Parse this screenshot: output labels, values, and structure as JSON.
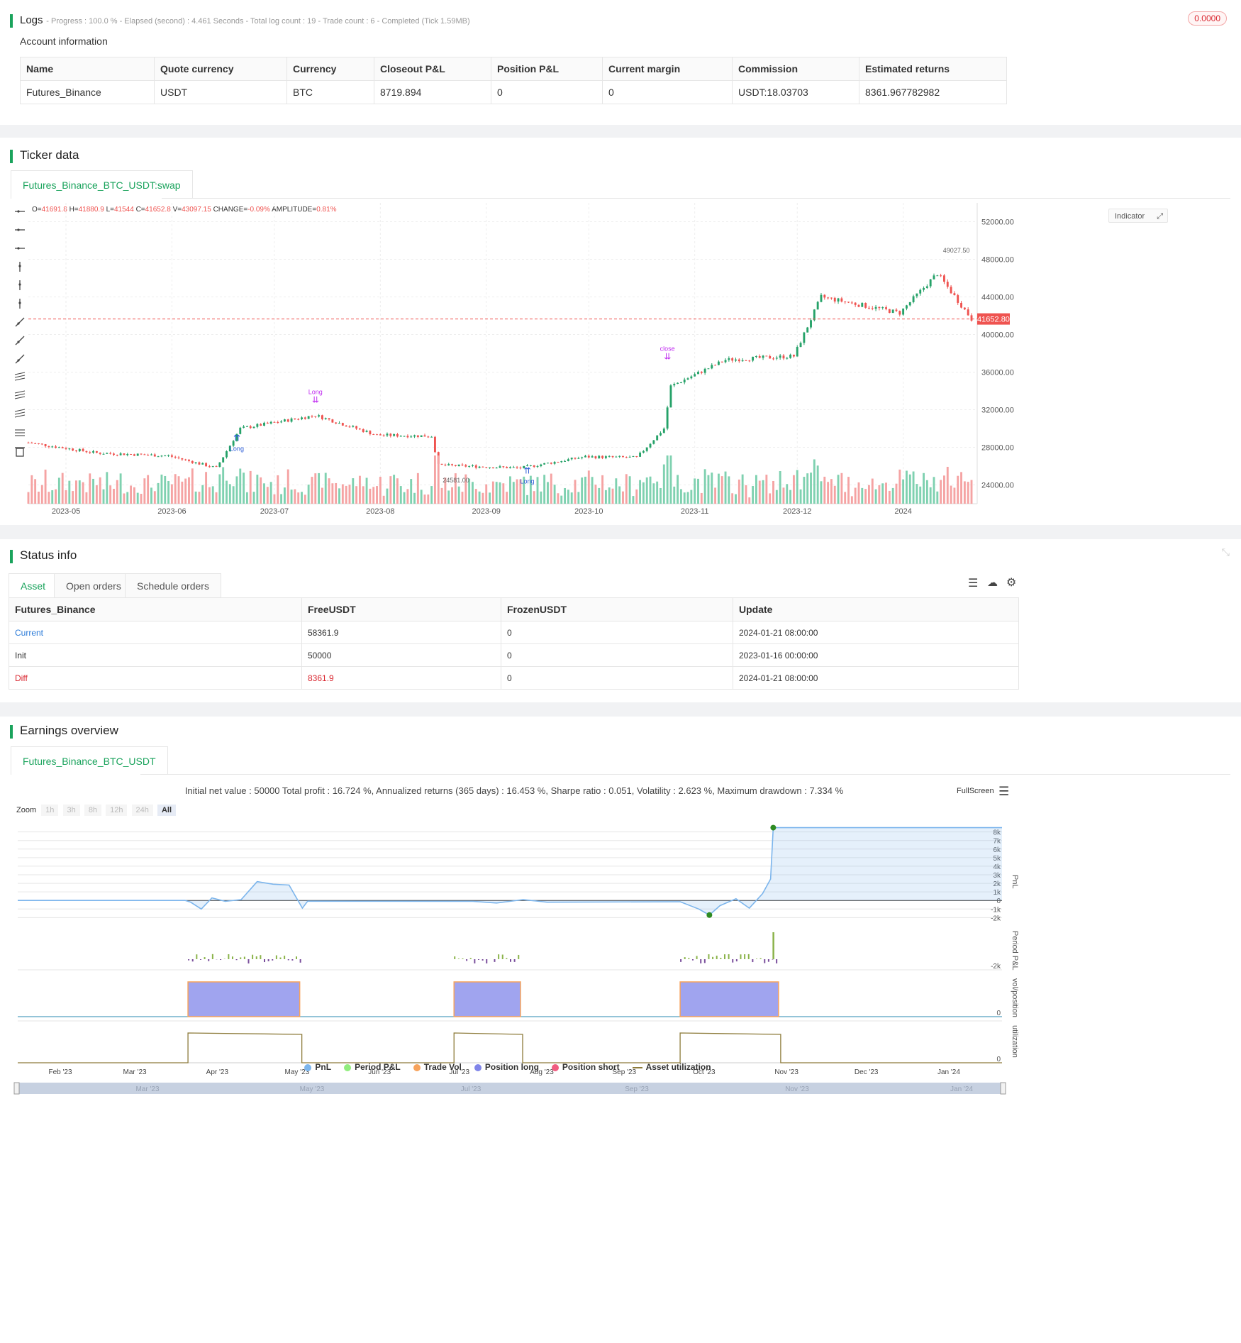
{
  "logs": {
    "title": "Logs",
    "status_line": "- Progress : 100.0 % - Elapsed (second) : 4.461  Seconds - Total log count : 19 - Trade count : 6 - Completed (Tick 1.59MB)",
    "badge": "0.0000",
    "account_title": "Account information",
    "columns": [
      "Name",
      "Quote currency",
      "Currency",
      "Closeout P&L",
      "Position P&L",
      "Current margin",
      "Commission",
      "Estimated returns"
    ],
    "row": [
      "Futures_Binance",
      "USDT",
      "BTC",
      "8719.894",
      "0",
      "0",
      "USDT:18.03703",
      "8361.967782982"
    ]
  },
  "ticker": {
    "title": "Ticker data",
    "tab": "Futures_Binance_BTC_USDT:swap",
    "ohlc": {
      "o_label": "O=",
      "o": "41691.8",
      "h_label": "H=",
      "h": "41880.9",
      "l_label": "L=",
      "l": "41544",
      "c_label": "C=",
      "c": "41652.8",
      "v_label": "V=",
      "v": "43097.15",
      "change_label": "CHANGE=",
      "change": "-0.09%",
      "amp_label": "AMPLITUDE=",
      "amp": "0.81%"
    },
    "indicator_btn": "Indicator",
    "last_price": "41652.80",
    "high_label": "49027.50",
    "low_label": "24581.00",
    "colors": {
      "up": "#26a269",
      "down": "#ef5350",
      "up_vol": "#7fd1b0",
      "down_vol": "#f5a3a3",
      "signal": "#c02cf0",
      "long": "#2a5bd7"
    },
    "annotations": {
      "close": "close",
      "long": "Long",
      "long1": "long",
      "long_count": "1"
    },
    "chart_data": {
      "type": "candlestick",
      "y_ticks": [
        "52000.00",
        "48000.00",
        "44000.00",
        "40000.00",
        "36000.00",
        "32000.00",
        "28000.00",
        "24000.00"
      ],
      "x_ticks": [
        "2023-05",
        "2023-06",
        "2023-07",
        "2023-08",
        "2023-09",
        "2023-10",
        "2023-11",
        "2023-12",
        "2024"
      ],
      "ylim": [
        22000,
        54000
      ],
      "close_anchors": [
        {
          "date": "2023-04-20",
          "close": 28500
        },
        {
          "date": "2023-05-10",
          "close": 27400
        },
        {
          "date": "2023-05-31",
          "close": 27100
        },
        {
          "date": "2023-06-14",
          "close": 25800
        },
        {
          "date": "2023-06-21",
          "close": 30000
        },
        {
          "date": "2023-07-13",
          "close": 31400
        },
        {
          "date": "2023-07-31",
          "close": 29300
        },
        {
          "date": "2023-08-16",
          "close": 29200
        },
        {
          "date": "2023-08-18",
          "close": 26100
        },
        {
          "date": "2023-09-11",
          "close": 25800
        },
        {
          "date": "2023-09-30",
          "close": 27000
        },
        {
          "date": "2023-10-15",
          "close": 26900
        },
        {
          "date": "2023-10-23",
          "close": 30000
        },
        {
          "date": "2023-10-25",
          "close": 34500
        },
        {
          "date": "2023-11-10",
          "close": 37300
        },
        {
          "date": "2023-11-30",
          "close": 37700
        },
        {
          "date": "2023-12-08",
          "close": 44000
        },
        {
          "date": "2023-12-31",
          "close": 42300
        },
        {
          "date": "2024-01-11",
          "close": 46500
        },
        {
          "date": "2024-01-21",
          "close": 41652.8
        }
      ]
    },
    "toolbar_icons": [
      "horizontal-ray-icon",
      "horizontal-line-icon",
      "horizontal-segment-icon",
      "vertical-ray-icon",
      "vertical-line-icon",
      "vertical-segment-icon",
      "trend-ray-icon",
      "trend-line-icon",
      "trend-segment-icon",
      "price-label-icon",
      "parallel-channel-icon",
      "fib-channel-icon",
      "fib-levels-icon",
      "delete-icon"
    ]
  },
  "status": {
    "title": "Status info",
    "tabs": [
      "Asset",
      "Open orders",
      "Schedule orders"
    ],
    "columns": [
      "Futures_Binance",
      "FreeUSDT",
      "FrozenUSDT",
      "Update"
    ],
    "rows": [
      {
        "name": "Current",
        "free": "58361.9",
        "frozen": "0",
        "update": "2024-01-21 08:00:00",
        "color": "#2a7ad8"
      },
      {
        "name": "Init",
        "free": "50000",
        "frozen": "0",
        "update": "2023-01-16 00:00:00",
        "color": "#333333"
      },
      {
        "name": "Diff",
        "free": "8361.9",
        "frozen": "0",
        "update": "2024-01-21 08:00:00",
        "color": "#d9252e"
      }
    ]
  },
  "earnings": {
    "title": "Earnings overview",
    "tab": "Futures_Binance_BTC_USDT",
    "summary": "Initial net value : 50000  Total profit : 16.724 %, Annualized returns (365 days) : 16.453 %, Sharpe ratio : 0.051, Volatility : 2.623 %, Maximum drawdown : 7.334 %",
    "fullscreen": "FullScreen",
    "zoom_label": "Zoom",
    "zoom_options": [
      "1h",
      "3h",
      "8h",
      "12h",
      "24h",
      "All"
    ],
    "pnl_ticks": [
      "8k",
      "7k",
      "6k",
      "5k",
      "4k",
      "3k",
      "2k",
      "1k",
      "0",
      "-1k",
      "-2k"
    ],
    "pnl_axis": "PnL",
    "period_axis": "Period P&L",
    "period_tick": "-2k",
    "vol_axis": "vol/position",
    "vol_tick": "0",
    "util_axis": "utilization",
    "util_tick": "0",
    "x_ticks": [
      "Feb '23",
      "Mar '23",
      "Apr '23",
      "May '23",
      "Jun '23",
      "Jul '23",
      "Aug '23",
      "Sep '23",
      "Oct '23",
      "Nov '23",
      "Dec '23",
      "Jan '24"
    ],
    "nav_ticks": [
      "Mar '23",
      "May '23",
      "Jul '23",
      "Sep '23",
      "Nov '23",
      "Jan '24"
    ],
    "legend": [
      {
        "name": "PnL",
        "color": "#7cb5ec"
      },
      {
        "name": "Period P&L",
        "color": "#90ed7d"
      },
      {
        "name": "Trade Vol",
        "color": "#f7a35c"
      },
      {
        "name": "Position long",
        "color": "#8085e9"
      },
      {
        "name": "Position short",
        "color": "#f15c80"
      },
      {
        "name": "Asset utilization",
        "color": "#8d7b3a"
      }
    ],
    "chart_data": {
      "type": "area",
      "x_range": [
        "2023-01-16",
        "2024-01-21"
      ],
      "ylim": [
        -2300,
        8300
      ],
      "pnl_points": [
        {
          "date": "2023-01-16",
          "pnl": 0
        },
        {
          "date": "2023-03-20",
          "pnl": 0
        },
        {
          "date": "2023-03-22",
          "pnl": -200
        },
        {
          "date": "2023-03-26",
          "pnl": -1000
        },
        {
          "date": "2023-03-30",
          "pnl": 300
        },
        {
          "date": "2023-04-04",
          "pnl": -100
        },
        {
          "date": "2023-04-10",
          "pnl": 100
        },
        {
          "date": "2023-04-16",
          "pnl": 2200
        },
        {
          "date": "2023-04-22",
          "pnl": 1900
        },
        {
          "date": "2023-04-28",
          "pnl": 1800
        },
        {
          "date": "2023-05-03",
          "pnl": -900
        },
        {
          "date": "2023-05-05",
          "pnl": -80
        },
        {
          "date": "2023-07-06",
          "pnl": -100
        },
        {
          "date": "2023-07-15",
          "pnl": -300
        },
        {
          "date": "2023-07-25",
          "pnl": 100
        },
        {
          "date": "2023-08-03",
          "pnl": -200
        },
        {
          "date": "2023-09-22",
          "pnl": -150
        },
        {
          "date": "2023-09-29",
          "pnl": -1000
        },
        {
          "date": "2023-10-03",
          "pnl": -1700
        },
        {
          "date": "2023-10-07",
          "pnl": -600
        },
        {
          "date": "2023-10-13",
          "pnl": 200
        },
        {
          "date": "2023-10-18",
          "pnl": -900
        },
        {
          "date": "2023-10-23",
          "pnl": 800
        },
        {
          "date": "2023-10-26",
          "pnl": 2500
        },
        {
          "date": "2023-10-27",
          "pnl": 8500
        },
        {
          "date": "2024-01-21",
          "pnl": 8500
        }
      ],
      "max_marker": {
        "date": "2023-10-27",
        "pnl": 8500
      },
      "min_marker": {
        "date": "2023-10-03",
        "pnl": -1700
      },
      "position_periods": [
        {
          "start": "2023-03-21",
          "end": "2023-05-02"
        },
        {
          "start": "2023-06-29",
          "end": "2023-07-24"
        },
        {
          "start": "2023-09-22",
          "end": "2023-10-29"
        }
      ]
    }
  }
}
